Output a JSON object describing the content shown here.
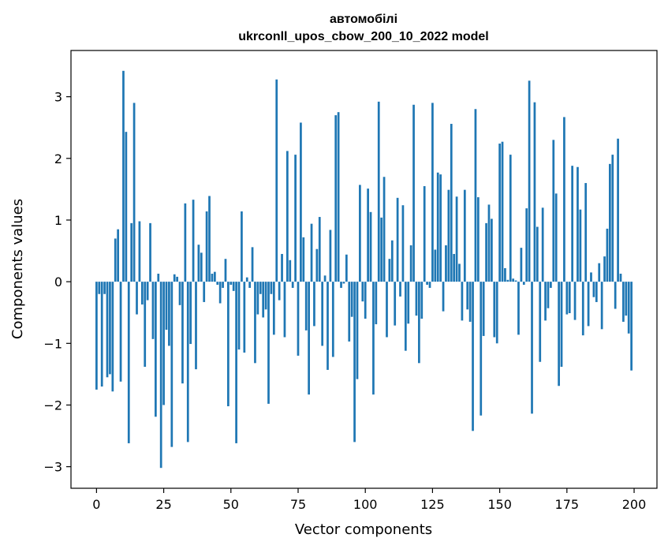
{
  "chart_data": {
    "type": "bar",
    "title": "автомобілі",
    "subtitle": "ukrconll_upos_cbow_200_10_2022 model",
    "xlabel": "Vector components",
    "ylabel": "Components values",
    "bar_color": "#1f77b4",
    "xlim": [
      -9.5,
      208.5
    ],
    "ylim": [
      -3.35,
      3.75
    ],
    "x_ticks": [
      0,
      25,
      50,
      75,
      100,
      125,
      150,
      175,
      200
    ],
    "y_ticks": [
      -3,
      -2,
      -1,
      0,
      1,
      2,
      3
    ],
    "x_tick_labels": [
      "0",
      "25",
      "50",
      "75",
      "100",
      "125",
      "150",
      "175",
      "200"
    ],
    "y_tick_labels": [
      "−3",
      "−2",
      "−1",
      "0",
      "1",
      "2",
      "3"
    ],
    "grid": false,
    "values": [
      -1.75,
      -0.2,
      -1.7,
      -0.2,
      -1.55,
      -1.5,
      -1.78,
      0.7,
      0.85,
      -1.62,
      3.42,
      2.43,
      -2.62,
      0.95,
      2.9,
      -0.53,
      0.98,
      -0.37,
      -1.38,
      -0.3,
      0.95,
      -0.93,
      -2.19,
      0.13,
      -3.02,
      -2.0,
      -0.78,
      -1.04,
      -2.68,
      0.12,
      0.08,
      -0.38,
      -1.65,
      1.27,
      -2.6,
      -1.01,
      1.33,
      -1.42,
      0.6,
      0.47,
      -0.33,
      1.14,
      1.39,
      0.13,
      0.16,
      -0.05,
      -0.35,
      -0.1,
      0.37,
      -2.02,
      -0.05,
      -0.15,
      -2.62,
      -1.1,
      1.14,
      -1.15,
      0.07,
      -0.1,
      0.56,
      -1.32,
      -0.53,
      -0.2,
      -0.58,
      -0.45,
      -1.98,
      -0.2,
      -0.86,
      3.28,
      -0.3,
      0.45,
      -0.9,
      2.12,
      0.35,
      -0.1,
      2.06,
      -1.2,
      2.58,
      0.72,
      -0.79,
      -1.83,
      0.94,
      -0.72,
      0.53,
      1.05,
      -1.04,
      0.1,
      -1.43,
      0.84,
      -1.22,
      2.7,
      2.75,
      -0.1,
      -0.03,
      0.44,
      -0.97,
      -0.57,
      -2.6,
      -1.58,
      1.57,
      -0.32,
      -0.6,
      1.51,
      1.13,
      -1.83,
      -0.69,
      2.92,
      1.04,
      1.7,
      -0.9,
      0.37,
      0.67,
      -0.71,
      1.36,
      -0.24,
      1.24,
      -1.12,
      -0.68,
      0.59,
      2.87,
      -0.55,
      -1.32,
      -0.6,
      1.55,
      -0.05,
      -0.1,
      2.9,
      0.52,
      1.77,
      1.74,
      -0.48,
      0.59,
      1.49,
      2.56,
      0.45,
      1.38,
      0.29,
      -0.63,
      1.49,
      -0.45,
      -0.65,
      -2.42,
      2.8,
      1.37,
      -2.17,
      -0.88,
      0.95,
      1.25,
      1.02,
      -0.9,
      -1.0,
      2.24,
      2.27,
      0.22,
      0.03,
      2.06,
      0.05,
      0.02,
      -0.86,
      0.55,
      -0.05,
      1.19,
      3.26,
      -2.14,
      2.91,
      0.89,
      -1.3,
      1.2,
      -0.63,
      -0.43,
      -0.1,
      2.3,
      1.43,
      -1.69,
      -1.38,
      2.67,
      -0.53,
      -0.51,
      1.88,
      -0.62,
      1.86,
      1.17,
      -0.87,
      1.6,
      -0.72,
      0.15,
      -0.25,
      -0.33,
      0.3,
      -0.77,
      0.41,
      0.86,
      1.91,
      2.06,
      -0.44,
      2.32,
      0.13,
      -0.65,
      -0.55,
      -0.84,
      -1.44
    ]
  }
}
